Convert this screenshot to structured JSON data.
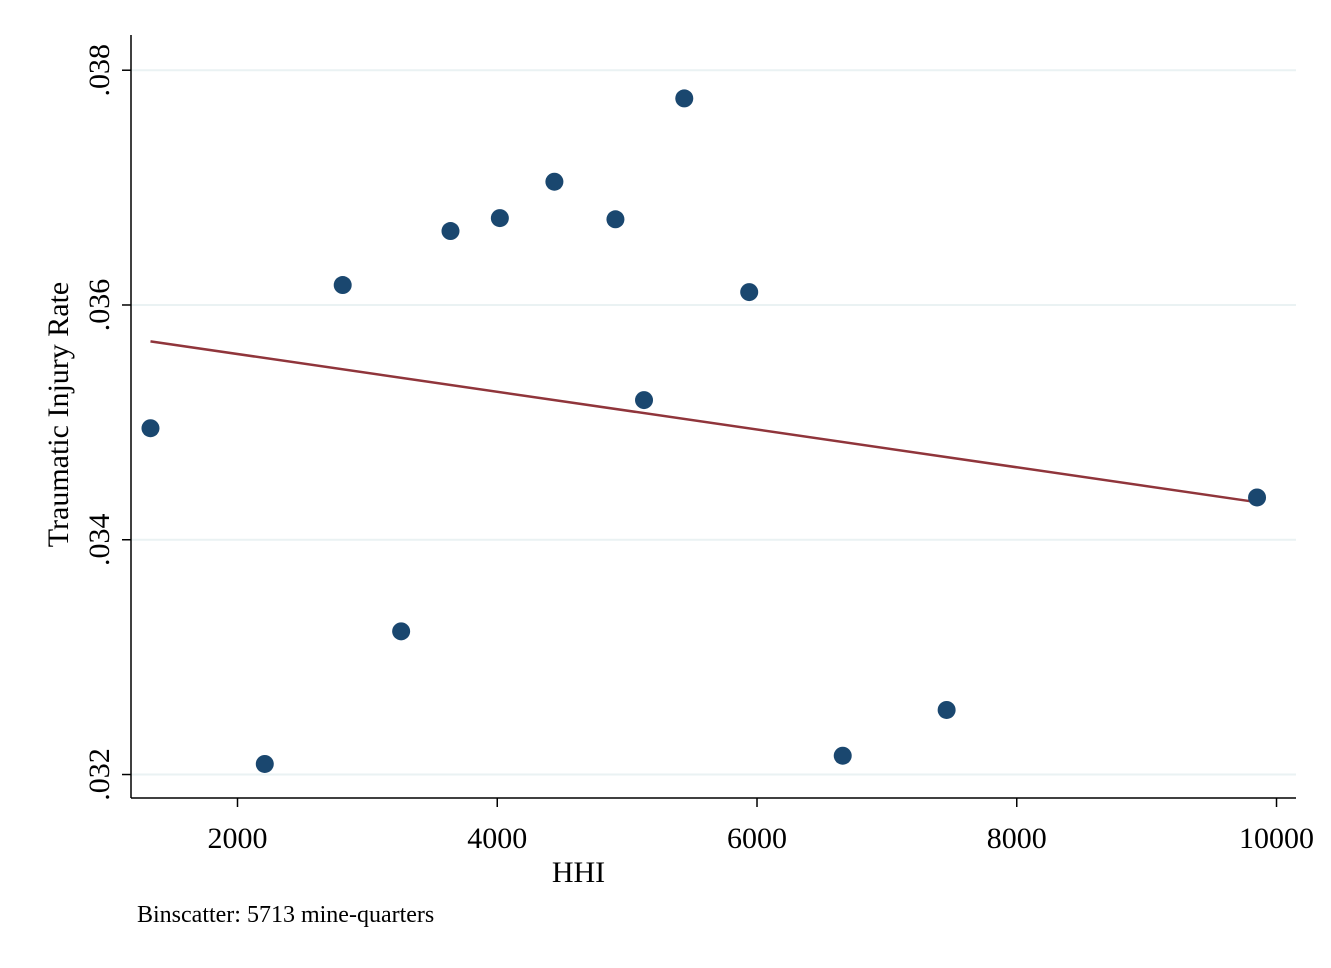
{
  "chart_data": {
    "type": "scatter",
    "title": "",
    "xlabel": "HHI",
    "ylabel": "Traumatic Injury Rate",
    "note": "Binscatter: 5713 mine-quarters",
    "xlim": [
      1180,
      10150
    ],
    "ylim": [
      0.0318,
      0.0383
    ],
    "xticks": [
      2000,
      4000,
      6000,
      8000,
      10000
    ],
    "xtick_labels": [
      "2000",
      "4000",
      "6000",
      "8000",
      "10000"
    ],
    "yticks": [
      0.032,
      0.034,
      0.036,
      0.038
    ],
    "ytick_labels": [
      ".032",
      ".034",
      ".036",
      ".038"
    ],
    "grid": "horizontal",
    "legend": "none",
    "colors": {
      "points": "#1a476f",
      "fit_line": "#90353b",
      "grid": "#eaf2f3",
      "axis": "#000000"
    },
    "points": [
      {
        "x": 1330,
        "y": 0.03495
      },
      {
        "x": 2210,
        "y": 0.03209
      },
      {
        "x": 2810,
        "y": 0.03617
      },
      {
        "x": 3260,
        "y": 0.03322
      },
      {
        "x": 3640,
        "y": 0.03663
      },
      {
        "x": 4020,
        "y": 0.03674
      },
      {
        "x": 4440,
        "y": 0.03705
      },
      {
        "x": 4910,
        "y": 0.03673
      },
      {
        "x": 5130,
        "y": 0.03519
      },
      {
        "x": 5440,
        "y": 0.03776
      },
      {
        "x": 5940,
        "y": 0.03611
      },
      {
        "x": 6660,
        "y": 0.03216
      },
      {
        "x": 7460,
        "y": 0.03255
      },
      {
        "x": 9850,
        "y": 0.03436
      }
    ],
    "fit_line": [
      {
        "x": 1330,
        "y": 0.03569
      },
      {
        "x": 9850,
        "y": 0.03432
      }
    ]
  }
}
